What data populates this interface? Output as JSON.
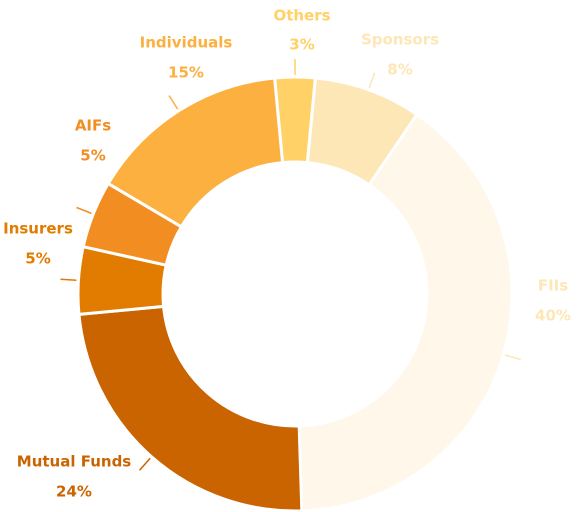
{
  "chart_data": {
    "type": "donut",
    "categories": [
      "Others",
      "Sponsors",
      "FIIs",
      "Mutual Funds",
      "Insurers",
      "AIFs",
      "Individuals"
    ],
    "values": [
      3,
      8,
      40,
      24,
      5,
      5,
      15
    ],
    "value_labels": [
      "3%",
      "8%",
      "40%",
      "24%",
      "5%",
      "5%",
      "15%"
    ],
    "colors": [
      "#ffd166",
      "#fde7b6",
      "#fef7ea",
      "#c96400",
      "#e27c00",
      "#f28e21",
      "#fbb040"
    ],
    "label_colors": [
      "#ffd166",
      "#fde7b6",
      "#fde7b6",
      "#c96400",
      "#e27c00",
      "#f28e21",
      "#fbb040"
    ]
  }
}
